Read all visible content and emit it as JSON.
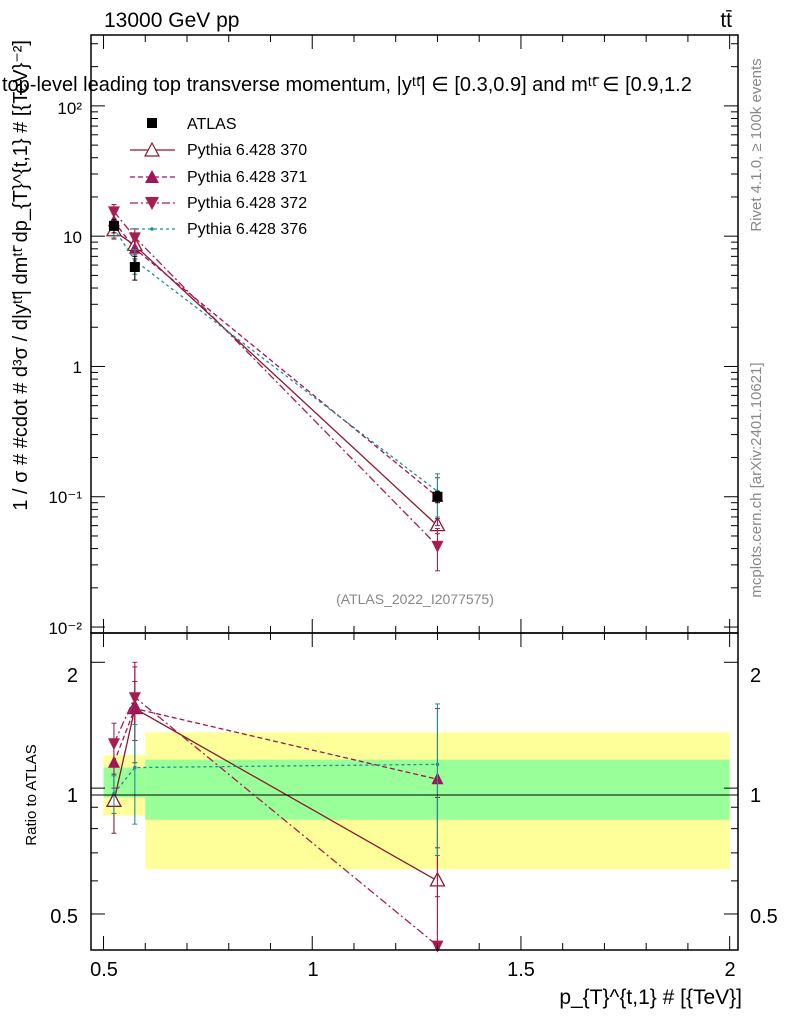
{
  "header": {
    "energy_label": "13000 GeV pp",
    "process_label": "tt̄",
    "title": "top-level leading top transverse momentum, |yᵗᵗ̄| ∈ [0.3,0.9] and mᵗᵗ̄ ∈ [0.9,1.2",
    "rivet_label": "Rivet 4.1.0, ≥ 100k events",
    "site_label": "mcplots.cern.ch [arXiv:2401.10621]",
    "watermark": "(ATLAS_2022_I2077575)"
  },
  "axes": {
    "xlabel": "p_{T}^{t,1} # [{TeV}]",
    "ylabel_main": "1 / σ # #cdot # d³σ / d|yᵗᵗ̄| dmᵗᵗ̄ dp_{T}^{t,1} # [{TeV}⁻²]",
    "ylabel_ratio": "Ratio to ATLAS",
    "x_ticks": [
      "0.5",
      "1",
      "1.5",
      "2"
    ],
    "y_ticks_main": [
      "10⁻²",
      "10⁻¹",
      "1",
      "10",
      "10²"
    ],
    "y_ticks_ratio": [
      "0.5",
      "1",
      "2"
    ]
  },
  "legend": [
    {
      "label": "ATLAS",
      "marker": "square",
      "color": "#000000",
      "dash": ""
    },
    {
      "label": "Pythia 6.428 370",
      "marker": "triangle-up-open",
      "color": "#8b1a2b",
      "dash": ""
    },
    {
      "label": "Pythia 6.428 371",
      "marker": "triangle-up",
      "color": "#a0145a",
      "dash": "5,3"
    },
    {
      "label": "Pythia 6.428 372",
      "marker": "triangle-down",
      "color": "#a81d4f",
      "dash": "8,3,2,3"
    },
    {
      "label": "Pythia 6.428 376",
      "marker": "dot",
      "color": "#1f8f8f",
      "dash": "3,3"
    }
  ],
  "chart_data": {
    "type": "scatter",
    "x_scale": "linear",
    "y_scale_main": "log",
    "xlim": [
      0.47,
      2.02
    ],
    "ylim_main": [
      0.009,
      350
    ],
    "ylim_ratio": [
      0.41,
      2.35
    ],
    "ratio_y_scale": "log",
    "x": [
      0.525,
      0.575,
      1.3
    ],
    "bin_edges": [
      0.5,
      0.55,
      0.6,
      2.0
    ],
    "data": {
      "name": "ATLAS",
      "y": [
        12.0,
        5.8,
        0.1
      ],
      "yerr": [
        1.4,
        1.2,
        0.01
      ]
    },
    "series": [
      {
        "name": "Pythia 6.428 370",
        "y": [
          11.0,
          8.5,
          0.06
        ],
        "err": [
          1.5,
          1.3,
          0.008
        ]
      },
      {
        "name": "Pythia 6.428 371",
        "y": [
          13.0,
          8.0,
          0.1
        ],
        "err": [
          1.8,
          1.3,
          0.04
        ]
      },
      {
        "name": "Pythia 6.428 372",
        "y": [
          15.5,
          9.8,
          0.042
        ],
        "err": [
          2.0,
          1.6,
          0.015
        ]
      },
      {
        "name": "Pythia 6.428 376",
        "y": [
          11.5,
          6.5,
          0.11
        ],
        "err": [
          1.8,
          1.4,
          0.04
        ]
      }
    ],
    "ratio_series": [
      {
        "name": "Pythia 6.428 370",
        "y": [
          0.93,
          1.55,
          0.6
        ],
        "err": [
          0.15,
          0.25,
          0.35
        ]
      },
      {
        "name": "Pythia 6.428 371",
        "y": [
          1.15,
          1.55,
          1.05
        ],
        "err": [
          0.15,
          0.4,
          0.5
        ]
      },
      {
        "name": "Pythia 6.428 372",
        "y": [
          1.28,
          1.65,
          0.42
        ],
        "err": [
          0.15,
          0.35,
          0.3
        ]
      },
      {
        "name": "Pythia 6.428 376",
        "y": [
          0.97,
          1.12,
          1.14
        ],
        "err": [
          0.1,
          0.3,
          0.45
        ]
      }
    ],
    "ratio_bands": {
      "stat_color": "#99ff99",
      "total_color": "#ffff99",
      "green": [
        [
          0.5,
          0.55,
          0.95,
          1.12
        ],
        [
          0.55,
          0.6,
          0.95,
          1.12
        ],
        [
          0.6,
          2.0,
          0.84,
          1.17
        ]
      ],
      "yellow": [
        [
          0.5,
          0.55,
          0.86,
          1.2
        ],
        [
          0.55,
          0.6,
          0.86,
          1.2
        ],
        [
          0.6,
          2.0,
          0.64,
          1.36
        ]
      ]
    }
  }
}
